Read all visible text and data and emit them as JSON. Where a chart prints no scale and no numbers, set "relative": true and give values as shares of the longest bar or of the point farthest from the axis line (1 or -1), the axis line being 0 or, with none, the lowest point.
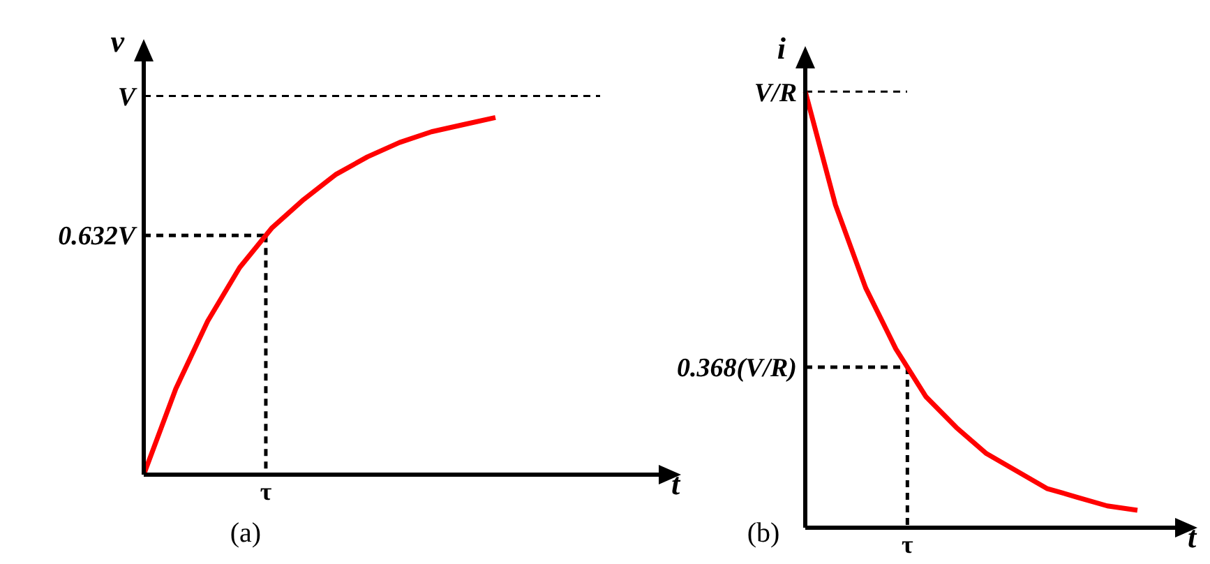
{
  "chart_data": [
    {
      "type": "line",
      "relative": true,
      "title": "(a)",
      "xlabel": "t",
      "ylabel": "v",
      "marker": "none",
      "line_style": "solid",
      "annotations": [
        "τ"
      ],
      "ref_lines": [
        {
          "axis": "y",
          "value": 1.06,
          "label": "V",
          "line_style": "dashed",
          "color": "#000000"
        },
        {
          "axis": "y",
          "value": 0.67,
          "label": "0.632V",
          "line_style": "dashed",
          "color": "#000000"
        }
      ],
      "categories": [
        null,
        null,
        null,
        null,
        null,
        null,
        null,
        null,
        null,
        null,
        null,
        null
      ],
      "series": [
        {
          "color": "#ff0000",
          "values": [
            0,
            0.24,
            0.43,
            0.58,
            0.69,
            0.77,
            0.84,
            0.89,
            0.93,
            0.96,
            0.98,
            1
          ]
        }
      ]
    },
    {
      "type": "line",
      "relative": true,
      "title": "(b)",
      "xlabel": "t",
      "ylabel": "i",
      "marker": "none",
      "line_style": "solid",
      "annotations": [
        "τ"
      ],
      "ref_lines": [
        {
          "axis": "y",
          "value": 1,
          "label": "V/R",
          "line_style": "dashed",
          "color": "#000000"
        },
        {
          "axis": "y",
          "value": 0.368,
          "label": "0.368(V/R)",
          "line_style": "dashed",
          "color": "#000000"
        }
      ],
      "categories": [
        null,
        null,
        null,
        null,
        null,
        null,
        null,
        null,
        null,
        null,
        null,
        null
      ],
      "series": [
        {
          "color": "#ff0000",
          "values": [
            1,
            0.74,
            0.55,
            0.41,
            0.3,
            0.23,
            0.17,
            0.13,
            0.09,
            0.07,
            0.05,
            0.04
          ]
        }
      ]
    }
  ]
}
